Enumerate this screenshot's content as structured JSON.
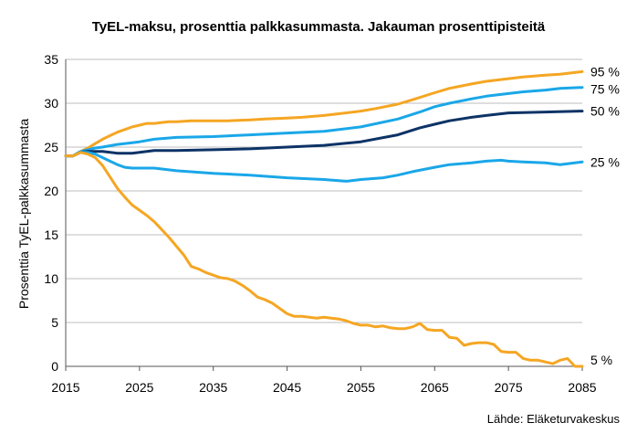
{
  "chart_data": {
    "type": "line",
    "title": "TyEL-maksu, prosenttia palkkasummasta. Jakauman prosenttipisteitä",
    "xlabel": "",
    "ylabel": "Prosenttia TyEL-palkkasummasta",
    "xlim": [
      2015,
      2085
    ],
    "ylim": [
      0,
      35
    ],
    "xticks": [
      "2015",
      "2025",
      "2035",
      "2045",
      "2055",
      "2065",
      "2075",
      "2085"
    ],
    "yticks": [
      "0",
      "5",
      "10",
      "15",
      "20",
      "25",
      "30",
      "35"
    ],
    "grid": "horizontal",
    "source": "Lähde: Eläketurvakeskus",
    "series": [
      {
        "name": "95 %",
        "color": "#f5a623",
        "x": [
          2015,
          2016,
          2017,
          2018,
          2019,
          2020,
          2021,
          2022,
          2023,
          2024,
          2025,
          2026,
          2027,
          2028,
          2029,
          2030,
          2032,
          2035,
          2037,
          2040,
          2042,
          2045,
          2047,
          2050,
          2052,
          2055,
          2057,
          2060,
          2062,
          2065,
          2067,
          2070,
          2072,
          2075,
          2077,
          2080,
          2082,
          2085
        ],
        "y": [
          24.0,
          24.0,
          24.5,
          24.9,
          25.4,
          25.9,
          26.3,
          26.7,
          27.0,
          27.3,
          27.5,
          27.7,
          27.7,
          27.8,
          27.9,
          27.9,
          28.0,
          28.0,
          28.0,
          28.1,
          28.2,
          28.3,
          28.4,
          28.6,
          28.8,
          29.1,
          29.4,
          29.9,
          30.4,
          31.2,
          31.7,
          32.2,
          32.5,
          32.8,
          33.0,
          33.2,
          33.3,
          33.6
        ]
      },
      {
        "name": "75 %",
        "color": "#1aa7e8",
        "x": [
          2015,
          2016,
          2017,
          2018,
          2019,
          2020,
          2022,
          2024,
          2025,
          2027,
          2030,
          2035,
          2040,
          2045,
          2050,
          2055,
          2060,
          2063,
          2065,
          2067,
          2070,
          2072,
          2075,
          2077,
          2080,
          2082,
          2085
        ],
        "y": [
          24.0,
          24.0,
          24.5,
          24.7,
          24.9,
          25.0,
          25.3,
          25.5,
          25.6,
          25.9,
          26.1,
          26.2,
          26.4,
          26.6,
          26.8,
          27.3,
          28.2,
          29.0,
          29.6,
          30.0,
          30.5,
          30.8,
          31.1,
          31.3,
          31.5,
          31.7,
          31.8
        ]
      },
      {
        "name": "50 %",
        "color": "#0d3366",
        "x": [
          2015,
          2016,
          2017,
          2018,
          2019,
          2020,
          2022,
          2024,
          2025,
          2027,
          2030,
          2035,
          2040,
          2045,
          2050,
          2055,
          2060,
          2063,
          2065,
          2067,
          2070,
          2072,
          2075,
          2080,
          2085
        ],
        "y": [
          24.0,
          24.0,
          24.4,
          24.5,
          24.5,
          24.5,
          24.3,
          24.3,
          24.4,
          24.6,
          24.6,
          24.7,
          24.8,
          25.0,
          25.2,
          25.6,
          26.4,
          27.2,
          27.6,
          28.0,
          28.4,
          28.6,
          28.9,
          29.0,
          29.1
        ]
      },
      {
        "name": "25 %",
        "color": "#1aa7e8",
        "x": [
          2015,
          2016,
          2017,
          2018,
          2019,
          2020,
          2021,
          2022,
          2023,
          2024,
          2025,
          2027,
          2030,
          2035,
          2040,
          2045,
          2050,
          2053,
          2055,
          2058,
          2060,
          2062,
          2065,
          2067,
          2070,
          2072,
          2074,
          2075,
          2077,
          2080,
          2082,
          2085
        ],
        "y": [
          24.0,
          24.0,
          24.4,
          24.4,
          24.2,
          23.8,
          23.4,
          23.0,
          22.7,
          22.6,
          22.6,
          22.6,
          22.3,
          22.0,
          21.8,
          21.5,
          21.3,
          21.1,
          21.3,
          21.5,
          21.8,
          22.2,
          22.7,
          23.0,
          23.2,
          23.4,
          23.5,
          23.4,
          23.3,
          23.2,
          23.0,
          23.3
        ]
      },
      {
        "name": "5 %",
        "color": "#f5a623",
        "x": [
          2015,
          2016,
          2017,
          2018,
          2019,
          2020,
          2021,
          2022,
          2023,
          2024,
          2025,
          2026,
          2027,
          2028,
          2029,
          2030,
          2031,
          2032,
          2033,
          2034,
          2035,
          2036,
          2037,
          2038,
          2039,
          2040,
          2041,
          2042,
          2043,
          2044,
          2045,
          2046,
          2047,
          2048,
          2049,
          2050,
          2051,
          2052,
          2053,
          2054,
          2055,
          2056,
          2057,
          2058,
          2059,
          2060,
          2061,
          2062,
          2063,
          2064,
          2065,
          2066,
          2067,
          2068,
          2069,
          2070,
          2071,
          2072,
          2073,
          2074,
          2075,
          2076,
          2077,
          2078,
          2079,
          2080,
          2081,
          2082,
          2083,
          2084,
          2085
        ],
        "y": [
          24.0,
          24.0,
          24.4,
          24.2,
          23.8,
          22.9,
          21.6,
          20.3,
          19.3,
          18.4,
          17.8,
          17.2,
          16.5,
          15.6,
          14.7,
          13.7,
          12.7,
          11.4,
          11.1,
          10.7,
          10.4,
          10.1,
          10.0,
          9.7,
          9.2,
          8.6,
          7.9,
          7.6,
          7.2,
          6.6,
          6.0,
          5.7,
          5.7,
          5.6,
          5.5,
          5.6,
          5.5,
          5.4,
          5.2,
          4.9,
          4.7,
          4.7,
          4.5,
          4.6,
          4.4,
          4.3,
          4.3,
          4.5,
          4.9,
          4.2,
          4.1,
          4.1,
          3.3,
          3.2,
          2.4,
          2.6,
          2.7,
          2.7,
          2.5,
          1.7,
          1.6,
          1.6,
          0.9,
          0.7,
          0.7,
          0.5,
          0.3,
          0.7,
          0.9,
          0.0,
          0.0
        ]
      }
    ]
  }
}
